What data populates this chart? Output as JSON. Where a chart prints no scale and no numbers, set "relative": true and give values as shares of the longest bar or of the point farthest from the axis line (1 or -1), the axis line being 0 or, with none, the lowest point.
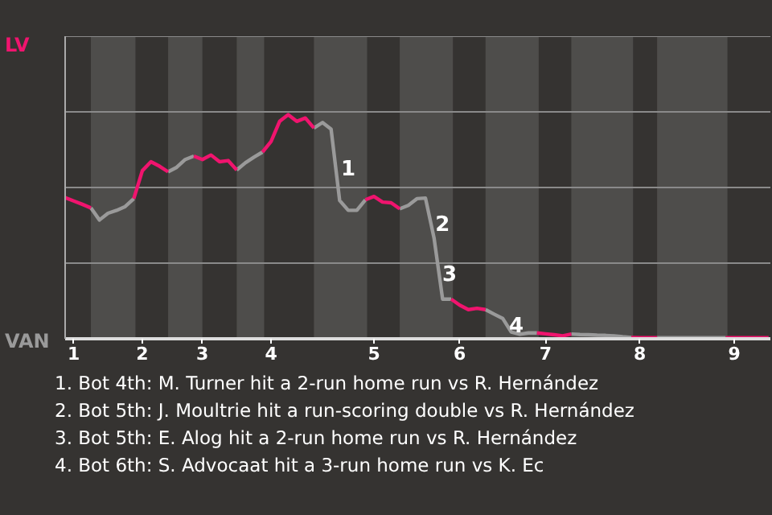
{
  "chart_data": {
    "type": "line",
    "relative": true,
    "categories": [
      null,
      "1",
      null,
      null,
      null,
      null,
      null,
      null,
      null,
      "2",
      null,
      null,
      null,
      null,
      null,
      null,
      "3",
      null,
      null,
      null,
      null,
      null,
      null,
      null,
      "4",
      null,
      null,
      null,
      null,
      null,
      null,
      null,
      null,
      null,
      null,
      null,
      "5",
      null,
      null,
      null,
      null,
      null,
      null,
      null,
      null,
      null,
      "6",
      null,
      null,
      null,
      null,
      null,
      null,
      null,
      null,
      null,
      "7",
      null,
      null,
      null,
      null,
      null,
      null,
      null,
      null,
      null,
      null,
      "8",
      null,
      null,
      null,
      null,
      null,
      null,
      null,
      null,
      null,
      null,
      "9",
      null,
      null,
      null,
      null
    ],
    "series": [
      {
        "color": "#f0146e",
        "values": [
          0.63,
          0.615,
          0.6,
          0.584,
          null,
          null,
          null,
          null,
          0.625,
          0.75,
          0.79,
          0.77,
          0.745,
          null,
          null,
          0.815,
          0.8,
          0.82,
          0.79,
          0.795,
          0.753,
          null,
          null,
          0.833,
          0.88,
          0.97,
          1.0,
          0.97,
          0.985,
          0.94,
          null,
          null,
          null,
          null,
          null,
          0.62,
          0.635,
          0.61,
          0.607,
          0.58,
          null,
          null,
          null,
          null,
          null,
          0.177,
          0.15,
          0.13,
          0.136,
          0.13,
          null,
          null,
          null,
          null,
          null,
          0.026,
          0.022,
          0.018,
          0.013,
          0.021,
          null,
          null,
          null,
          null,
          null,
          null,
          0.006,
          0.005,
          0.005,
          0.005,
          null,
          null,
          null,
          null,
          null,
          null,
          null,
          0.005,
          0.005,
          0.005,
          0.005,
          0.005,
          0.005
        ]
      },
      {
        "color": "#9a9a9a",
        "values": [
          null,
          null,
          null,
          0.584,
          0.53,
          0.56,
          0.573,
          0.59,
          0.625,
          null,
          null,
          null,
          0.745,
          0.765,
          0.8,
          0.815,
          null,
          null,
          null,
          null,
          0.753,
          0.785,
          0.81,
          0.833,
          null,
          null,
          null,
          null,
          null,
          0.94,
          0.965,
          0.935,
          0.617,
          0.573,
          0.573,
          0.62,
          null,
          null,
          null,
          0.58,
          0.595,
          0.625,
          0.628,
          0.45,
          0.177,
          0.177,
          null,
          null,
          null,
          0.13,
          0.11,
          0.091,
          0.03,
          0.02,
          0.026,
          0.026,
          null,
          null,
          null,
          0.021,
          0.019,
          0.018,
          0.016,
          0.015,
          0.013,
          0.009,
          0.006,
          null,
          null,
          0.005,
          0.005,
          0.005,
          0.005,
          0.005,
          0.005,
          0.005,
          0.005,
          0.005,
          null,
          null,
          null,
          null,
          null
        ]
      }
    ],
    "tick_labels": "x",
    "ref_lines": [
      {
        "axis": "y",
        "value": 0.3375,
        "color": "#8a8a8a"
      },
      {
        "axis": "y",
        "value": 0.675,
        "color": "#8a8a8a"
      },
      {
        "axis": "y",
        "value": 1.0125,
        "color": "#8a8a8a"
      },
      {
        "axis": "y",
        "value": 1.35,
        "color": "#8a8a8a"
      }
    ],
    "annotations": [
      "LV",
      "VAN",
      "1",
      "2",
      "3",
      "4",
      "1. Bot 4th: M. Turner hit a 2-run home run vs R. Hernández",
      "2. Bot 5th: J. Moultrie hit a run-scoring double vs R. Hernández",
      "3. Bot 5th: E. Alog hit a 2-run home run vs R. Hernández",
      "4. Bot 6th: S. Advocaat hit a 3-run home run vs K. Ec"
    ]
  }
}
